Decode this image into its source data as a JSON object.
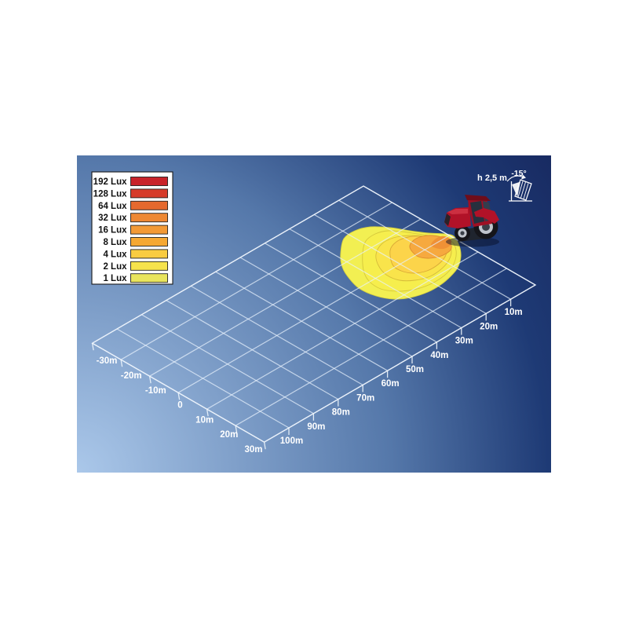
{
  "diagram": {
    "background_gradient": {
      "corner_bottom_left": "#abc8ea",
      "mid_left": "#5578aa",
      "corner_bottom_right": "#1e3a75",
      "corner_top_right": "#16255b"
    },
    "grid_color": "rgba(232,241,252,0.72)",
    "grid_edge_color": "rgba(240,246,253,0.88)",
    "label_color": "#ffffff"
  },
  "legend": {
    "items": [
      {
        "label": "192 Lux",
        "color": "#c8232a"
      },
      {
        "label": "128 Lux",
        "color": "#d63b2a"
      },
      {
        "label": "64 Lux",
        "color": "#e5692e"
      },
      {
        "label": "32 Lux",
        "color": "#ee8833"
      },
      {
        "label": "16 Lux",
        "color": "#f39a36"
      },
      {
        "label": "8 Lux",
        "color": "#f6a832"
      },
      {
        "label": "4 Lux",
        "color": "#f9cc41"
      },
      {
        "label": "2 Lux",
        "color": "#f6e34c"
      },
      {
        "label": "1 Lux",
        "color": "#e9e55c"
      }
    ]
  },
  "annotation": {
    "height_label": "h 2,5 m",
    "angle_label": "-15°"
  },
  "axes": {
    "lateral_labels": [
      "-30m",
      "-20m",
      "-10m",
      "0",
      "10m",
      "20m",
      "30m"
    ],
    "distance_labels": [
      "10m",
      "20m",
      "30m",
      "40m",
      "50m",
      "60m",
      "70m",
      "80m",
      "90m",
      "100m"
    ]
  },
  "icons": {
    "tractor": "red-tractor-illustration",
    "lamp": "lamp-tilt-icon"
  },
  "tractor_colors": {
    "body": "#b11228",
    "roof": "#6f0d1a",
    "window": "#27303e",
    "tire": "#15151a",
    "rim": "#c0c4cc"
  },
  "chart_data": {
    "type": "heatmap",
    "subtype": "isolux-beam-pattern",
    "title": "",
    "lamp": {
      "mounting_height_m": 2.5,
      "tilt_deg": -15,
      "position": {
        "lateral_m": 0,
        "distance_m": 0
      }
    },
    "legend_levels_lux": [
      192,
      128,
      64,
      32,
      16,
      8,
      4,
      2,
      1
    ],
    "lateral_axis_m": [
      -30,
      -20,
      -10,
      0,
      10,
      20,
      30
    ],
    "distance_axis_m": [
      10,
      20,
      30,
      40,
      50,
      60,
      70,
      80,
      90,
      100
    ],
    "grid_extent": {
      "lateral_m": [
        -30,
        30
      ],
      "distance_m": [
        0,
        110
      ]
    },
    "isolux_contours": [
      {
        "lux": 1,
        "max_distance_m": 35,
        "lateral_span_m": [
          -14,
          11
        ]
      },
      {
        "lux": 2,
        "max_distance_m": 31,
        "lateral_span_m": [
          -12,
          9
        ]
      },
      {
        "lux": 4,
        "max_distance_m": 25,
        "lateral_span_m": [
          -10,
          8
        ]
      },
      {
        "lux": 8,
        "max_distance_m": 19,
        "lateral_span_m": [
          -8,
          6
        ]
      },
      {
        "lux": 16,
        "max_distance_m": 11,
        "lateral_span_m": [
          -5,
          3
        ]
      },
      {
        "lux": 32,
        "max_distance_m": 7,
        "lateral_span_m": [
          -3,
          2
        ]
      }
    ],
    "beam_fill_colors": {
      "1": "#f2ef52",
      "2": "#f6ee4d",
      "4": "#f9e44b",
      "8": "#fcd44a",
      "16": "#f6a93f",
      "32": "#ef9136"
    },
    "legend_position": "top-left",
    "grid": true
  }
}
